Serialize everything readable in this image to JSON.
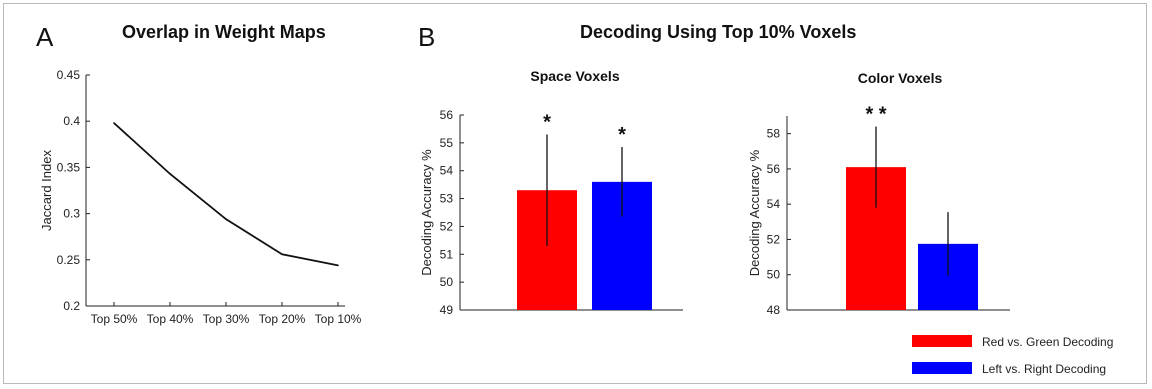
{
  "panels": {
    "a_letter": "A",
    "a_title": "Overlap in Weight Maps",
    "b_letter": "B",
    "b_title": "Decoding Using Top 10% Voxels"
  },
  "colors": {
    "red": "#ff0000",
    "blue": "#0000ff",
    "line": "#111111"
  },
  "chart_data": [
    {
      "type": "line",
      "title": "",
      "xlabel": "",
      "ylabel": "Jaccard Index",
      "categories": [
        "Top 50%",
        "Top 40%",
        "Top 30%",
        "Top 20%",
        "Top 10%"
      ],
      "values": [
        0.398,
        0.343,
        0.294,
        0.256,
        0.244
      ],
      "ylim": [
        0.2,
        0.45
      ],
      "yticks": [
        "0.2",
        "0.25",
        "0.3",
        "0.35",
        "0.4",
        "0.45"
      ],
      "grid": false
    },
    {
      "type": "bar",
      "title": "Space Voxels",
      "ylabel": "Decoding Accuracy %",
      "categories": [
        "Red vs. Green Decoding",
        "Left vs. Right Decoding"
      ],
      "values": [
        53.3,
        53.6
      ],
      "error": [
        2.0,
        1.25
      ],
      "significance": [
        "*",
        "*"
      ],
      "ylim": [
        49,
        56
      ],
      "yticks": [
        "49",
        "50",
        "51",
        "52",
        "53",
        "54",
        "55",
        "56"
      ],
      "grid": false
    },
    {
      "type": "bar",
      "title": "Color Voxels",
      "ylabel": "Decoding Accuracy %",
      "categories": [
        "Red vs. Green Decoding",
        "Left vs. Right Decoding"
      ],
      "values": [
        56.1,
        51.75
      ],
      "error": [
        2.3,
        1.8
      ],
      "significance": [
        "* *",
        ""
      ],
      "ylim": [
        48,
        59
      ],
      "yticks": [
        "48",
        "50",
        "52",
        "54",
        "56",
        "58"
      ],
      "grid": false
    }
  ],
  "legend": {
    "placement": "bottom-right",
    "items": [
      {
        "label": "Red vs. Green Decoding",
        "color": "#ff0000"
      },
      {
        "label": "Left vs. Right Decoding",
        "color": "#0000ff"
      }
    ]
  }
}
